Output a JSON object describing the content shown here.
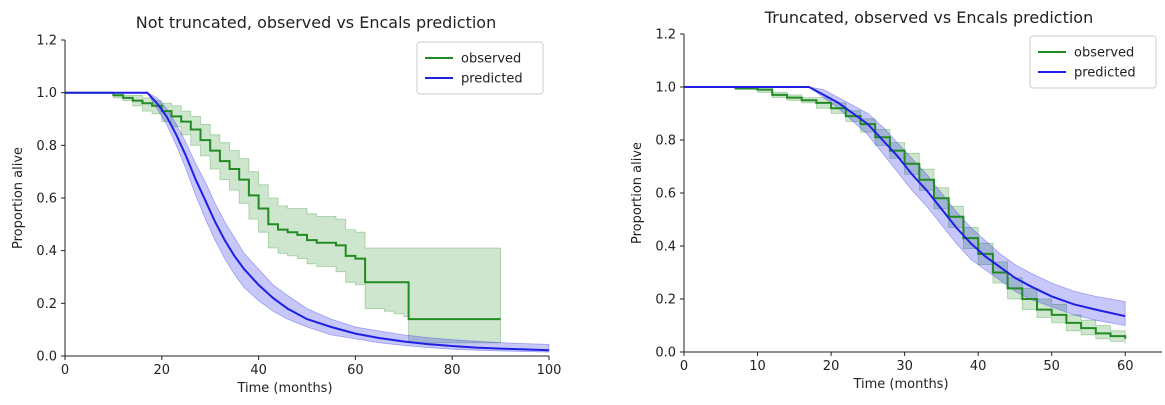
{
  "chart_data": [
    {
      "type": "line",
      "title": "Not truncated, observed vs Encals prediction",
      "xlabel": "Time (months)",
      "ylabel": "Proportion alive",
      "xlim": [
        0,
        100
      ],
      "ylim": [
        0,
        1.2
      ],
      "xticks": [
        0,
        20,
        40,
        60,
        80,
        100
      ],
      "yticks": [
        0.0,
        0.2,
        0.4,
        0.6,
        0.8,
        1.0,
        1.2
      ],
      "grid": false,
      "legend": "top-right",
      "series": [
        {
          "name": "observed",
          "color": "#228b22",
          "step": true,
          "x": [
            0,
            7,
            10,
            12,
            14,
            16,
            18,
            20,
            22,
            24,
            26,
            28,
            30,
            32,
            34,
            36,
            38,
            40,
            42,
            44,
            46,
            48,
            50,
            52,
            56,
            58,
            60,
            62,
            66,
            68,
            70,
            71,
            90
          ],
          "y": [
            1.0,
            1.0,
            0.99,
            0.98,
            0.97,
            0.96,
            0.95,
            0.93,
            0.91,
            0.89,
            0.86,
            0.82,
            0.78,
            0.74,
            0.71,
            0.67,
            0.61,
            0.56,
            0.5,
            0.48,
            0.47,
            0.46,
            0.44,
            0.43,
            0.42,
            0.38,
            0.37,
            0.28,
            0.28,
            0.28,
            0.28,
            0.14,
            0.14
          ],
          "ci_lower": [
            1.0,
            1.0,
            0.98,
            0.97,
            0.95,
            0.93,
            0.92,
            0.89,
            0.87,
            0.84,
            0.8,
            0.76,
            0.71,
            0.67,
            0.63,
            0.58,
            0.52,
            0.47,
            0.41,
            0.39,
            0.38,
            0.37,
            0.35,
            0.34,
            0.32,
            0.28,
            0.27,
            0.18,
            0.17,
            0.16,
            0.15,
            0.05,
            0.05
          ],
          "ci_upper": [
            1.0,
            1.0,
            1.0,
            0.99,
            0.99,
            0.98,
            0.97,
            0.96,
            0.95,
            0.93,
            0.91,
            0.88,
            0.84,
            0.81,
            0.78,
            0.75,
            0.7,
            0.65,
            0.6,
            0.57,
            0.56,
            0.56,
            0.54,
            0.53,
            0.52,
            0.48,
            0.47,
            0.41,
            0.41,
            0.41,
            0.41,
            0.41,
            0.41
          ]
        },
        {
          "name": "predicted",
          "color": "#1f1fe6",
          "x": [
            0,
            17,
            19,
            21,
            23,
            25,
            27,
            29,
            31,
            33,
            35,
            37,
            40,
            43,
            46,
            50,
            55,
            60,
            65,
            70,
            75,
            80,
            85,
            90,
            95,
            100
          ],
          "y": [
            1.0,
            1.0,
            0.96,
            0.91,
            0.84,
            0.76,
            0.67,
            0.59,
            0.51,
            0.44,
            0.38,
            0.33,
            0.27,
            0.22,
            0.18,
            0.14,
            0.11,
            0.085,
            0.068,
            0.055,
            0.045,
            0.038,
            0.032,
            0.028,
            0.025,
            0.022
          ],
          "ci_lower": [
            1.0,
            1.0,
            0.94,
            0.88,
            0.8,
            0.71,
            0.61,
            0.52,
            0.44,
            0.37,
            0.31,
            0.26,
            0.21,
            0.17,
            0.14,
            0.11,
            0.08,
            0.065,
            0.05,
            0.04,
            0.032,
            0.026,
            0.022,
            0.019,
            0.017,
            0.015
          ],
          "ci_upper": [
            1.0,
            1.0,
            0.98,
            0.94,
            0.88,
            0.81,
            0.73,
            0.66,
            0.58,
            0.51,
            0.45,
            0.39,
            0.33,
            0.27,
            0.23,
            0.18,
            0.14,
            0.11,
            0.095,
            0.08,
            0.07,
            0.062,
            0.056,
            0.051,
            0.047,
            0.044
          ]
        }
      ]
    },
    {
      "type": "line",
      "title": "Truncated, observed vs Encals prediction",
      "xlabel": "Time (months)",
      "ylabel": "Proportion alive",
      "xlim": [
        0,
        65
      ],
      "ylim": [
        0,
        1.2
      ],
      "xticks": [
        0,
        10,
        20,
        30,
        40,
        50,
        60
      ],
      "yticks": [
        0.0,
        0.2,
        0.4,
        0.6,
        0.8,
        1.0,
        1.2
      ],
      "grid": false,
      "legend": "top-right",
      "series": [
        {
          "name": "observed",
          "color": "#228b22",
          "step": true,
          "x": [
            0,
            7,
            10,
            12,
            14,
            16,
            18,
            20,
            22,
            24,
            26,
            28,
            30,
            32,
            34,
            36,
            38,
            40,
            42,
            44,
            46,
            48,
            50,
            52,
            54,
            56,
            58,
            60
          ],
          "y": [
            1.0,
            0.995,
            0.99,
            0.97,
            0.96,
            0.95,
            0.94,
            0.92,
            0.89,
            0.86,
            0.81,
            0.76,
            0.71,
            0.65,
            0.58,
            0.51,
            0.43,
            0.37,
            0.3,
            0.24,
            0.2,
            0.16,
            0.14,
            0.11,
            0.09,
            0.07,
            0.06,
            0.05
          ],
          "ci_lower": [
            1.0,
            0.99,
            0.98,
            0.96,
            0.95,
            0.94,
            0.92,
            0.9,
            0.87,
            0.83,
            0.78,
            0.73,
            0.67,
            0.61,
            0.54,
            0.47,
            0.39,
            0.33,
            0.26,
            0.2,
            0.16,
            0.13,
            0.11,
            0.08,
            0.065,
            0.05,
            0.04,
            0.03
          ],
          "ci_upper": [
            1.0,
            1.0,
            1.0,
            0.98,
            0.97,
            0.96,
            0.96,
            0.94,
            0.91,
            0.88,
            0.84,
            0.79,
            0.75,
            0.69,
            0.62,
            0.55,
            0.47,
            0.41,
            0.34,
            0.28,
            0.24,
            0.2,
            0.18,
            0.14,
            0.12,
            0.1,
            0.08,
            0.07
          ]
        },
        {
          "name": "predicted",
          "color": "#1f1fe6",
          "x": [
            0,
            17,
            19,
            21,
            23,
            25,
            27,
            29,
            31,
            33,
            35,
            37,
            39,
            41,
            43,
            45,
            47,
            50,
            53,
            56,
            60
          ],
          "y": [
            1.0,
            1.0,
            0.97,
            0.94,
            0.9,
            0.86,
            0.8,
            0.74,
            0.67,
            0.61,
            0.54,
            0.47,
            0.41,
            0.36,
            0.32,
            0.28,
            0.25,
            0.21,
            0.18,
            0.16,
            0.135
          ],
          "ci_lower": [
            1.0,
            1.0,
            0.96,
            0.92,
            0.87,
            0.82,
            0.75,
            0.68,
            0.61,
            0.55,
            0.48,
            0.41,
            0.35,
            0.31,
            0.27,
            0.23,
            0.2,
            0.17,
            0.14,
            0.12,
            0.1
          ],
          "ci_upper": [
            1.0,
            1.0,
            0.99,
            0.96,
            0.93,
            0.9,
            0.85,
            0.79,
            0.73,
            0.67,
            0.6,
            0.53,
            0.47,
            0.42,
            0.37,
            0.33,
            0.3,
            0.26,
            0.23,
            0.21,
            0.19
          ]
        }
      ]
    }
  ]
}
